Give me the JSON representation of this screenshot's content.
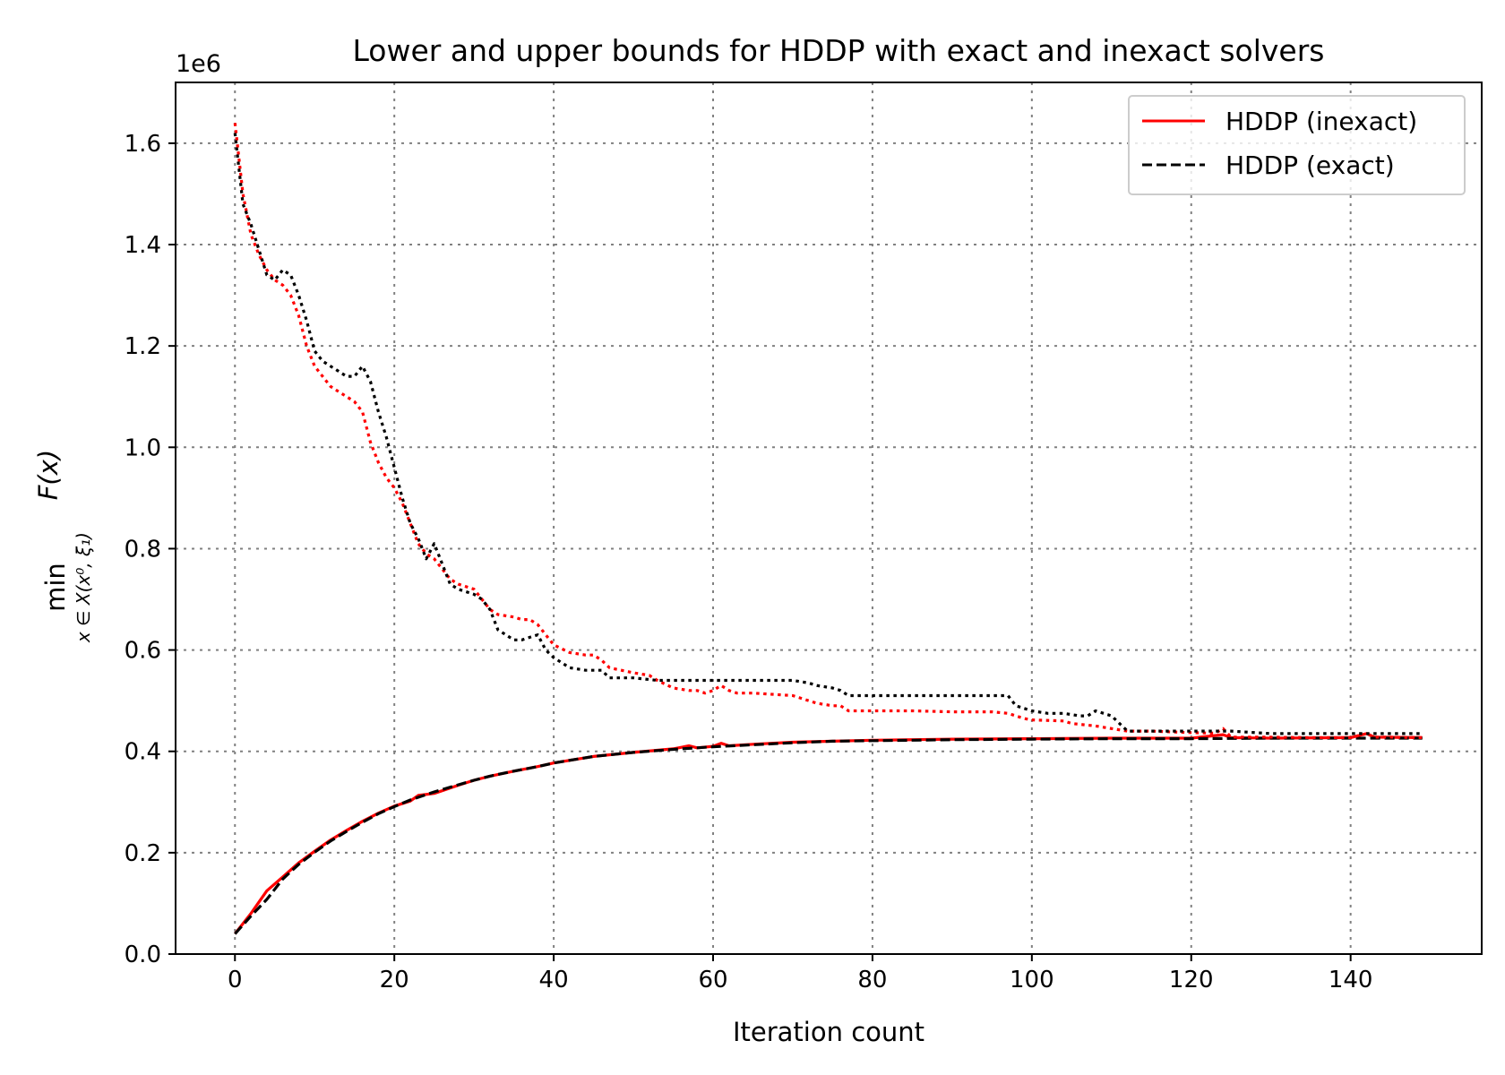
{
  "chart_data": {
    "type": "line",
    "title": "Lower and upper bounds for HDDP with exact and inexact solvers",
    "xlabel": "Iteration count",
    "ylabel": {
      "operator": "min",
      "subscript": "x ∈ X(x⁰, ξ₁)",
      "function": "F(x)"
    },
    "y_offset_label": "1e6",
    "xlim": [
      -7.45,
      156.45
    ],
    "ylim": [
      0,
      1.72
    ],
    "x_ticks": [
      0,
      20,
      40,
      60,
      80,
      100,
      120,
      140
    ],
    "x_tick_labels": [
      "0",
      "20",
      "40",
      "60",
      "80",
      "100",
      "120",
      "140"
    ],
    "y_ticks": [
      0,
      0.2,
      0.4,
      0.6,
      0.8,
      1.0,
      1.2,
      1.4,
      1.6
    ],
    "y_tick_labels": [
      "0.0",
      "0.2",
      "0.4",
      "0.6",
      "0.8",
      "1.0",
      "1.2",
      "1.4",
      "1.6"
    ],
    "grid": true,
    "legend": {
      "placement": "top-right",
      "entries": [
        {
          "label": "HDDP (inexact)",
          "color": "#ff0000",
          "style": "solid"
        },
        {
          "label": "HDDP (exact)",
          "color": "#000000",
          "style": "dashed"
        }
      ]
    },
    "series": [
      {
        "name": "HDDP (inexact)",
        "bound": "lower",
        "color": "#ff0000",
        "style": "solid",
        "x": [
          0,
          2,
          4,
          6,
          8,
          10,
          12,
          14,
          16,
          18,
          20,
          22,
          23,
          25,
          28,
          30,
          32,
          35,
          38,
          40,
          45,
          50,
          55,
          57,
          58,
          60,
          61,
          62,
          65,
          70,
          75,
          80,
          85,
          90,
          100,
          110,
          120,
          124,
          125,
          130,
          140,
          142,
          143,
          149
        ],
        "values": [
          0.04,
          0.08,
          0.125,
          0.152,
          0.18,
          0.203,
          0.225,
          0.244,
          0.262,
          0.278,
          0.292,
          0.302,
          0.313,
          0.317,
          0.333,
          0.343,
          0.351,
          0.361,
          0.37,
          0.377,
          0.39,
          0.398,
          0.405,
          0.411,
          0.407,
          0.41,
          0.416,
          0.411,
          0.414,
          0.418,
          0.42,
          0.422,
          0.423,
          0.424,
          0.425,
          0.426,
          0.426,
          0.433,
          0.427,
          0.426,
          0.427,
          0.435,
          0.428,
          0.427
        ]
      },
      {
        "name": "HDDP (exact)",
        "bound": "lower",
        "color": "#000000",
        "style": "dashed",
        "x": [
          0,
          2,
          4,
          6,
          8,
          10,
          12,
          14,
          16,
          18,
          20,
          22,
          25,
          28,
          30,
          32,
          35,
          38,
          40,
          45,
          50,
          55,
          60,
          65,
          70,
          75,
          80,
          85,
          90,
          100,
          110,
          120,
          130,
          140,
          149
        ],
        "values": [
          0.04,
          0.075,
          0.108,
          0.148,
          0.177,
          0.201,
          0.223,
          0.242,
          0.26,
          0.277,
          0.291,
          0.304,
          0.32,
          0.334,
          0.343,
          0.351,
          0.361,
          0.37,
          0.377,
          0.39,
          0.398,
          0.404,
          0.409,
          0.413,
          0.417,
          0.42,
          0.421,
          0.422,
          0.423,
          0.424,
          0.425,
          0.425,
          0.426,
          0.426,
          0.426
        ]
      },
      {
        "name": "HDDP (inexact)",
        "bound": "upper",
        "color": "#ff0000",
        "style": "dotted",
        "x": [
          0,
          1,
          2,
          3,
          4,
          5,
          6,
          7,
          8,
          9,
          10,
          11,
          12,
          13,
          14,
          15,
          16,
          17,
          18,
          19,
          20,
          21,
          22,
          23,
          24,
          25,
          26,
          27,
          28,
          30,
          31,
          32,
          33,
          35,
          36,
          37,
          38,
          39,
          40,
          42,
          44,
          45,
          46,
          47,
          50,
          52,
          53,
          55,
          57,
          58,
          59,
          60,
          61,
          62,
          63,
          65,
          70,
          72,
          73,
          75,
          76,
          77,
          80,
          85,
          90,
          95,
          97,
          98,
          99,
          100,
          104,
          105,
          108,
          110,
          112,
          115,
          118,
          120,
          123,
          124,
          125,
          130,
          135,
          140,
          142,
          143,
          145,
          149
        ],
        "values": [
          1.64,
          1.5,
          1.42,
          1.38,
          1.35,
          1.33,
          1.32,
          1.3,
          1.26,
          1.2,
          1.16,
          1.14,
          1.12,
          1.11,
          1.1,
          1.09,
          1.07,
          1.01,
          0.97,
          0.94,
          0.92,
          0.89,
          0.85,
          0.81,
          0.79,
          0.78,
          0.76,
          0.74,
          0.73,
          0.72,
          0.7,
          0.68,
          0.67,
          0.665,
          0.66,
          0.66,
          0.65,
          0.63,
          0.61,
          0.595,
          0.59,
          0.59,
          0.58,
          0.565,
          0.555,
          0.55,
          0.54,
          0.525,
          0.52,
          0.52,
          0.515,
          0.52,
          0.53,
          0.52,
          0.515,
          0.515,
          0.51,
          0.5,
          0.495,
          0.49,
          0.49,
          0.48,
          0.48,
          0.48,
          0.478,
          0.478,
          0.475,
          0.47,
          0.465,
          0.462,
          0.46,
          0.455,
          0.45,
          0.445,
          0.44,
          0.44,
          0.438,
          0.437,
          0.436,
          0.445,
          0.428,
          0.428,
          0.427,
          0.427,
          0.435,
          0.428,
          0.428,
          0.427
        ]
      },
      {
        "name": "HDDP (exact)",
        "bound": "upper",
        "color": "#000000",
        "style": "dotted",
        "x": [
          0,
          1,
          2,
          3,
          4,
          5,
          6,
          7,
          8,
          9,
          10,
          11,
          12,
          13,
          14,
          15,
          16,
          17,
          18,
          19,
          20,
          21,
          22,
          23,
          24,
          25,
          26,
          27,
          28,
          30,
          31,
          32,
          33,
          35,
          36,
          37,
          38,
          39,
          40,
          42,
          44,
          46,
          47,
          50,
          53,
          55,
          60,
          70,
          72,
          73,
          75,
          76,
          77,
          80,
          90,
          97,
          98,
          100,
          102,
          104,
          106,
          107,
          108,
          109,
          110,
          111,
          112,
          115,
          120,
          125,
          130,
          140,
          149
        ],
        "values": [
          1.62,
          1.48,
          1.44,
          1.39,
          1.34,
          1.33,
          1.35,
          1.34,
          1.3,
          1.25,
          1.19,
          1.17,
          1.16,
          1.15,
          1.14,
          1.14,
          1.16,
          1.13,
          1.07,
          1.02,
          0.96,
          0.9,
          0.85,
          0.82,
          0.78,
          0.81,
          0.77,
          0.73,
          0.72,
          0.71,
          0.7,
          0.68,
          0.64,
          0.62,
          0.62,
          0.625,
          0.63,
          0.6,
          0.585,
          0.565,
          0.56,
          0.56,
          0.545,
          0.545,
          0.54,
          0.54,
          0.54,
          0.54,
          0.535,
          0.53,
          0.525,
          0.52,
          0.51,
          0.51,
          0.51,
          0.51,
          0.49,
          0.48,
          0.475,
          0.475,
          0.47,
          0.47,
          0.48,
          0.475,
          0.47,
          0.455,
          0.44,
          0.44,
          0.44,
          0.44,
          0.435,
          0.435,
          0.435
        ]
      }
    ]
  }
}
